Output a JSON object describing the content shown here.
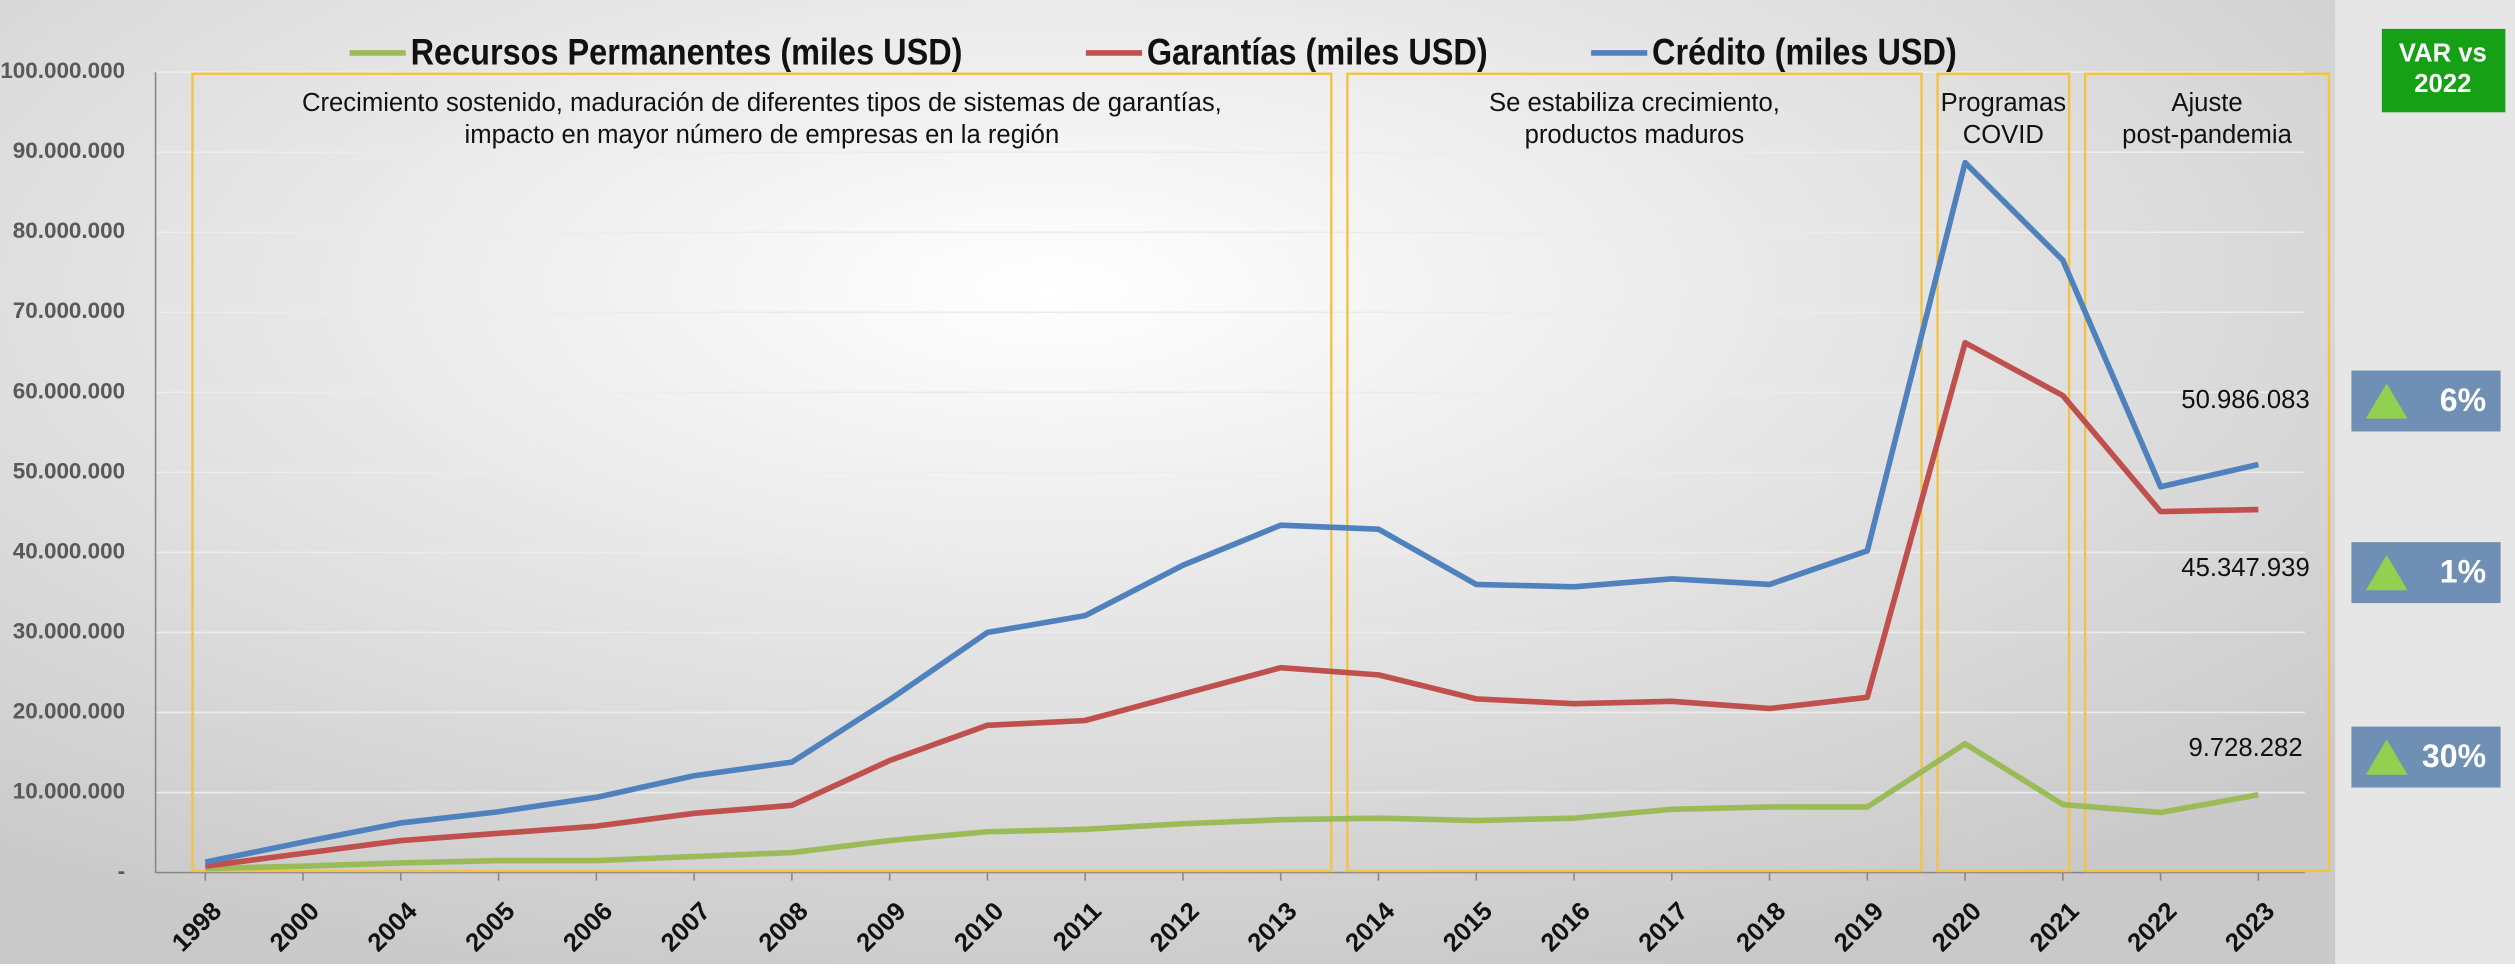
{
  "chart_data": {
    "type": "line",
    "categories": [
      "1998",
      "2000",
      "2004",
      "2005",
      "2006",
      "2007",
      "2008",
      "2009",
      "2010",
      "2011",
      "2012",
      "2013",
      "2014",
      "2015",
      "2016",
      "2017",
      "2018",
      "2019",
      "2020",
      "2021",
      "2022",
      "2023"
    ],
    "series": [
      {
        "name": "Recursos Permanentes (miles USD)",
        "color": "#9bbb59",
        "values": [
          500000,
          800000,
          1200000,
          1500000,
          1500000,
          2000000,
          2500000,
          4000000,
          5100000,
          5400000,
          6100000,
          6600000,
          6800000,
          6500000,
          6800000,
          7900000,
          8200000,
          8200000,
          16100000,
          8500000,
          7500000,
          9728282
        ],
        "value_labels": [
          null,
          null,
          null,
          null,
          null,
          null,
          null,
          null,
          null,
          null,
          null,
          null,
          null,
          null,
          null,
          null,
          null,
          null,
          null,
          null,
          null,
          "9.728.282"
        ]
      },
      {
        "name": "Garantías (miles USD)",
        "color": "#c0504d",
        "values": [
          800000,
          2400000,
          4000000,
          4900000,
          5800000,
          7400000,
          8400000,
          14000000,
          18400000,
          19000000,
          22300000,
          25600000,
          24700000,
          21700000,
          21100000,
          21400000,
          20500000,
          21900000,
          66200000,
          59600000,
          45100000,
          45347939
        ],
        "value_labels": [
          null,
          null,
          null,
          null,
          null,
          null,
          null,
          null,
          null,
          null,
          null,
          null,
          null,
          null,
          null,
          null,
          null,
          null,
          null,
          null,
          null,
          "45.347.939"
        ]
      },
      {
        "name": "Crédito (miles USD)",
        "color": "#4f81bd",
        "values": [
          1300000,
          3800000,
          6200000,
          7600000,
          9400000,
          12100000,
          13800000,
          21600000,
          30000000,
          32100000,
          38400000,
          43400000,
          42900000,
          36000000,
          35700000,
          36700000,
          36000000,
          40200000,
          88700000,
          76500000,
          48200000,
          50986083
        ],
        "value_labels": [
          null,
          null,
          null,
          null,
          null,
          null,
          null,
          null,
          null,
          null,
          null,
          null,
          null,
          null,
          null,
          null,
          null,
          null,
          null,
          null,
          null,
          "50.986.083"
        ]
      }
    ],
    "ylim": [
      0,
      100000000
    ],
    "yticks": [
      {
        "value": 0,
        "label": "-"
      },
      {
        "value": 10000000,
        "label": "10.000.000"
      },
      {
        "value": 20000000,
        "label": "20.000.000"
      },
      {
        "value": 30000000,
        "label": "30.000.000"
      },
      {
        "value": 40000000,
        "label": "40.000.000"
      },
      {
        "value": 50000000,
        "label": "50.000.000"
      },
      {
        "value": 60000000,
        "label": "60.000.000"
      },
      {
        "value": 70000000,
        "label": "70.000.000"
      },
      {
        "value": 80000000,
        "label": "80.000.000"
      },
      {
        "value": 90000000,
        "label": "90.000.000"
      },
      {
        "value": 100000000,
        "label": "100.000.000"
      }
    ],
    "grid": true,
    "annotations": [
      {
        "text": [
          "Crecimiento sostenido, maduración de  diferentes tipos de sistemas de garantías,",
          "impacto en mayor número de empresas en la región"
        ]
      },
      {
        "text": [
          "Se estabiliza crecimiento,",
          "productos maduros"
        ]
      },
      {
        "text": [
          "Programas",
          "COVID"
        ]
      },
      {
        "text": [
          "Ajuste",
          "post-pandemia"
        ]
      }
    ],
    "variation_title": [
      "VAR vs",
      "2022"
    ],
    "variations": [
      {
        "value": 6,
        "label": "6%"
      },
      {
        "value": 1,
        "label": "1%"
      },
      {
        "value": 30,
        "label": "30%"
      }
    ]
  }
}
